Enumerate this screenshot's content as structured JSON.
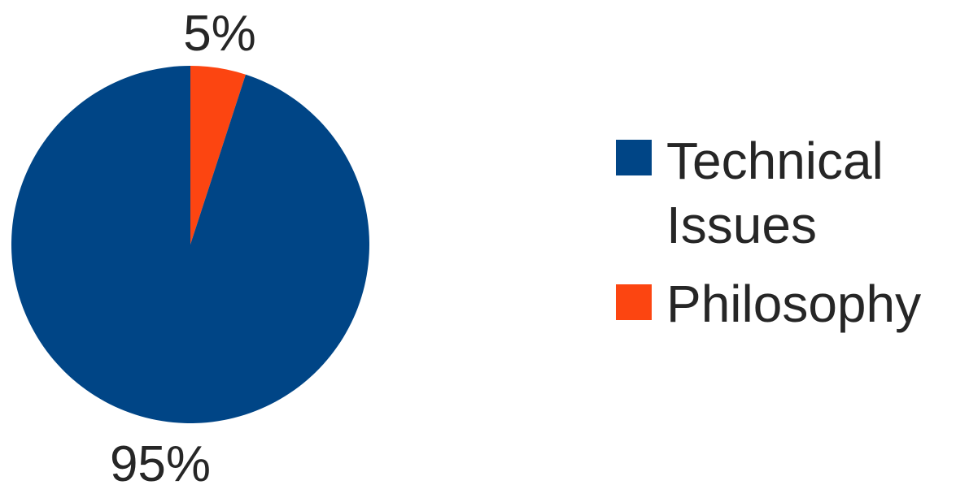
{
  "chart_data": {
    "type": "pie",
    "title": "",
    "start_angle": "top",
    "direction": "clockwise",
    "legend_position": "right",
    "slices": [
      {
        "label": "Philosophy",
        "legend_lines": [
          "Philosophy"
        ],
        "value": 5,
        "display": "5%",
        "color": "#fc4511"
      },
      {
        "label": "Technical Issues",
        "legend_lines": [
          "Technical",
          "Issues"
        ],
        "value": 95,
        "display": "95%",
        "color": "#004586"
      }
    ],
    "legend_order": [
      "Technical Issues",
      "Philosophy"
    ]
  }
}
